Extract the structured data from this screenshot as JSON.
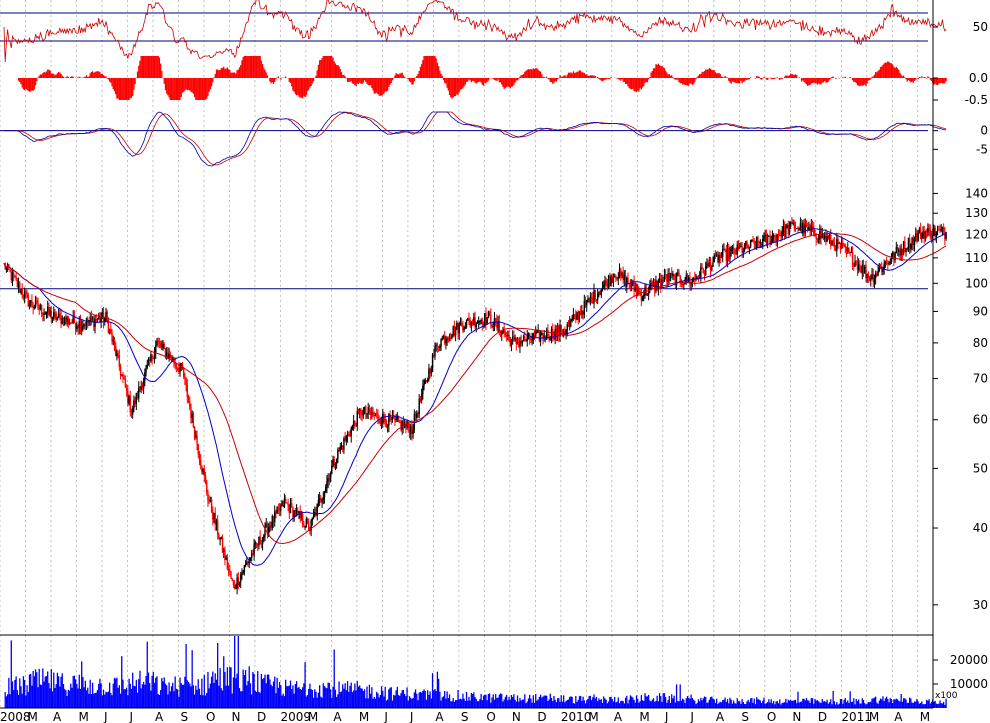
{
  "chart_data": {
    "type": "stock",
    "months": [
      "2008",
      "M",
      "A",
      "M",
      "J",
      "J",
      "A",
      "S",
      "O",
      "N",
      "D",
      "2009",
      "M",
      "A",
      "M",
      "J",
      "J",
      "A",
      "S",
      "O",
      "N",
      "D",
      "2010",
      "M",
      "A",
      "M",
      "J",
      "J",
      "A",
      "S",
      "O",
      "N",
      "D",
      "2011",
      "M",
      "A",
      "M"
    ],
    "indicator_rsi": {
      "tick_labels": [
        "50"
      ],
      "upper": 70,
      "lower": 30,
      "ylim": [
        0,
        100
      ]
    },
    "indicator_macd_hist": {
      "tick_labels": [
        "0.0",
        "-0.5"
      ],
      "ylim": [
        -1,
        1
      ]
    },
    "indicator_macd": {
      "tick_labels": [
        "0",
        "-5"
      ],
      "ylim": [
        -10,
        5
      ]
    },
    "price": {
      "scale": "log",
      "ylim": [
        27,
        150
      ],
      "tick_labels": [
        "140",
        "130",
        "120",
        "110",
        "100",
        "90",
        "80",
        "70",
        "60",
        "50",
        "40",
        "30"
      ],
      "tick_values": [
        140,
        130,
        120,
        110,
        100,
        90,
        80,
        70,
        60,
        50,
        40,
        30
      ],
      "reference_line": 98,
      "close_monthly": [
        107,
        93,
        88,
        86,
        88,
        62,
        80,
        72,
        45,
        32,
        38,
        44,
        40,
        52,
        62,
        60,
        58,
        80,
        86,
        88,
        80,
        82,
        84,
        94,
        104,
        96,
        102,
        101,
        110,
        114,
        118,
        124,
        120,
        113,
        102,
        112,
        121
      ],
      "ma_fast_color": "#0000cc",
      "ma_slow_color": "#cc0000"
    },
    "volume": {
      "tick_labels": [
        "20000",
        "10000"
      ],
      "unit_label": "x100",
      "ylim": [
        0,
        30000
      ],
      "color": "#0000ff",
      "monthly_level": [
        9000,
        11000,
        10000,
        9500,
        9000,
        10500,
        9000,
        9500,
        12000,
        11000,
        9500,
        8000,
        8500,
        7500,
        7000,
        6000,
        5500,
        5000,
        4500,
        4200,
        4000,
        3800,
        3500,
        3400,
        3600,
        4200,
        3800,
        3200,
        3000,
        3000,
        2800,
        2800,
        2600,
        2800,
        3500,
        3000,
        2600
      ]
    },
    "colors": {
      "up": "#000000",
      "down": "#ff0000",
      "rsi": "#cc0000",
      "hist": "#ff0000",
      "hline": "#000080",
      "grid": "#999999"
    }
  }
}
